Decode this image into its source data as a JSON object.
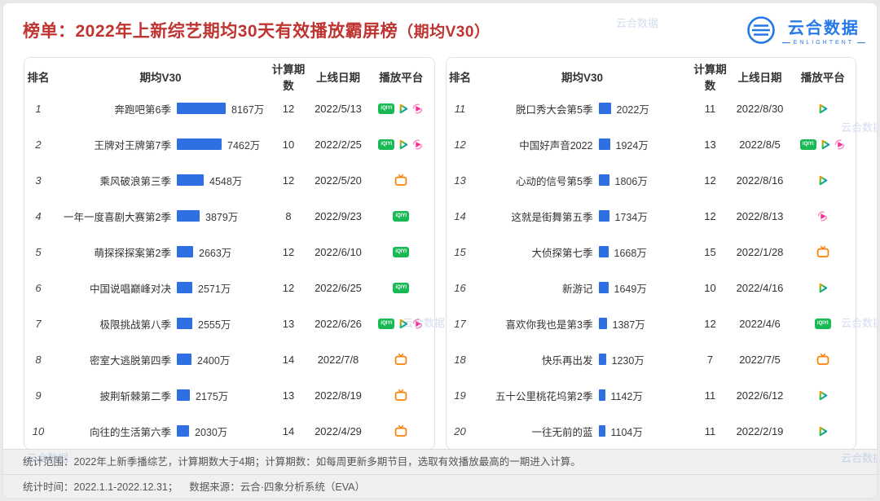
{
  "header": {
    "title_prefix": "榜单：",
    "title_main": "2022年上新综艺期均30天有效播放霸屏榜",
    "title_suffix": "（期均V30）",
    "logo_text": "云合数据",
    "logo_sub": "ENLIGHTENT"
  },
  "watermark_text": "云合数据",
  "footer": {
    "line1": "统计范围：2022年上新季播综艺，计算期数大于4期；计算期数：如每周更新多期节目，选取有效播放最高的一期进入计算。",
    "line2": "统计时间：2022.1.1-2022.12.31；    数据来源：云合·四象分析系统（EVA）"
  },
  "colors": {
    "title_red": "#bf3430",
    "bar_blue": "#2f6fe4",
    "logo_blue": "#2478e8",
    "iqiyi_green": "#19b955",
    "youku_pink": "#ff2a92",
    "mgtv_orange": "#ff8000",
    "tencent_gradient": [
      "#ff9a00",
      "#14c25a",
      "#1a6bff"
    ]
  },
  "chart_data": {
    "type": "bar",
    "title": "2022年上新综艺期均30天有效播放霸屏榜（期均V30）",
    "value_label": "期均V30",
    "value_unit": "万",
    "max_value": 8167,
    "xlim": [
      0,
      8167
    ],
    "columns": [
      "排名",
      "期均V30",
      "计算期数",
      "上线日期",
      "播放平台"
    ],
    "platform_icon_names": {
      "iqiyi": "iqiyi-icon",
      "tencent": "tencent-video-icon",
      "youku": "youku-icon",
      "mgtv": "mgtv-icon"
    },
    "series": [
      {
        "rank": 1,
        "name": "奔跑吧第6季",
        "value": 8167,
        "periods": 12,
        "date": "2022/5/13",
        "platforms": [
          "iqiyi",
          "tencent",
          "youku"
        ]
      },
      {
        "rank": 2,
        "name": "王牌对王牌第7季",
        "value": 7462,
        "periods": 10,
        "date": "2022/2/25",
        "platforms": [
          "iqiyi",
          "tencent",
          "youku"
        ]
      },
      {
        "rank": 3,
        "name": "乘风破浪第三季",
        "value": 4548,
        "periods": 12,
        "date": "2022/5/20",
        "platforms": [
          "mgtv"
        ]
      },
      {
        "rank": 4,
        "name": "一年一度喜剧大赛第2季",
        "value": 3879,
        "periods": 8,
        "date": "2022/9/23",
        "platforms": [
          "iqiyi"
        ]
      },
      {
        "rank": 5,
        "name": "萌探探探案第2季",
        "value": 2663,
        "periods": 12,
        "date": "2022/6/10",
        "platforms": [
          "iqiyi"
        ]
      },
      {
        "rank": 6,
        "name": "中国说唱巅峰对决",
        "value": 2571,
        "periods": 12,
        "date": "2022/6/25",
        "platforms": [
          "iqiyi"
        ]
      },
      {
        "rank": 7,
        "name": "极限挑战第八季",
        "value": 2555,
        "periods": 13,
        "date": "2022/6/26",
        "platforms": [
          "iqiyi",
          "tencent",
          "youku"
        ]
      },
      {
        "rank": 8,
        "name": "密室大逃脱第四季",
        "value": 2400,
        "periods": 14,
        "date": "2022/7/8",
        "platforms": [
          "mgtv"
        ]
      },
      {
        "rank": 9,
        "name": "披荆斩棘第二季",
        "value": 2175,
        "periods": 13,
        "date": "2022/8/19",
        "platforms": [
          "mgtv"
        ]
      },
      {
        "rank": 10,
        "name": "向往的生活第六季",
        "value": 2030,
        "periods": 14,
        "date": "2022/4/29",
        "platforms": [
          "mgtv"
        ]
      },
      {
        "rank": 11,
        "name": "脱口秀大会第5季",
        "value": 2022,
        "periods": 11,
        "date": "2022/8/30",
        "platforms": [
          "tencent"
        ]
      },
      {
        "rank": 12,
        "name": "中国好声音2022",
        "value": 1924,
        "periods": 13,
        "date": "2022/8/5",
        "platforms": [
          "iqiyi",
          "tencent",
          "youku"
        ]
      },
      {
        "rank": 13,
        "name": "心动的信号第5季",
        "value": 1806,
        "periods": 12,
        "date": "2022/8/16",
        "platforms": [
          "tencent"
        ]
      },
      {
        "rank": 14,
        "name": "这就是街舞第五季",
        "value": 1734,
        "periods": 12,
        "date": "2022/8/13",
        "platforms": [
          "youku"
        ]
      },
      {
        "rank": 15,
        "name": "大侦探第七季",
        "value": 1668,
        "periods": 15,
        "date": "2022/1/28",
        "platforms": [
          "mgtv"
        ]
      },
      {
        "rank": 16,
        "name": "新游记",
        "value": 1649,
        "periods": 10,
        "date": "2022/4/16",
        "platforms": [
          "tencent"
        ]
      },
      {
        "rank": 17,
        "name": "喜欢你我也是第3季",
        "value": 1387,
        "periods": 12,
        "date": "2022/4/6",
        "platforms": [
          "iqiyi"
        ]
      },
      {
        "rank": 18,
        "name": "快乐再出发",
        "value": 1230,
        "periods": 7,
        "date": "2022/7/5",
        "platforms": [
          "mgtv"
        ]
      },
      {
        "rank": 19,
        "name": "五十公里桃花坞第2季",
        "value": 1142,
        "periods": 11,
        "date": "2022/6/12",
        "platforms": [
          "tencent"
        ]
      },
      {
        "rank": 20,
        "name": "一往无前的蓝",
        "value": 1104,
        "periods": 11,
        "date": "2022/2/19",
        "platforms": [
          "tencent"
        ]
      }
    ]
  }
}
